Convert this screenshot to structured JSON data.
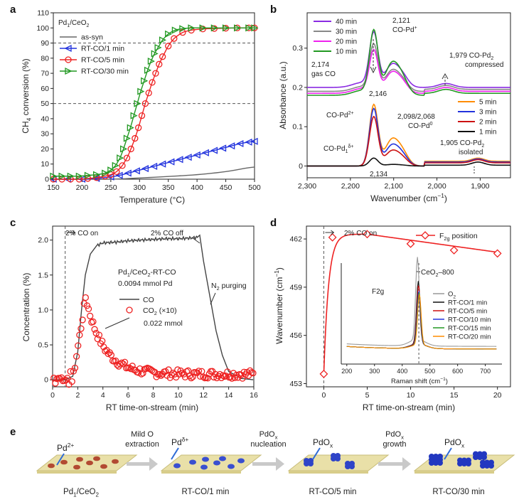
{
  "panel_labels": {
    "a": "a",
    "b": "b",
    "c": "c",
    "d": "d",
    "e": "e"
  },
  "chart_data": [
    {
      "id": "a",
      "type": "line",
      "ylabel_main": "CH",
      "ylabel_sub": "4",
      "ylabel_tail": " conversion (%)",
      "xlabel": "Temperature (°C)",
      "xlim": [
        150,
        500
      ],
      "ylim": [
        0,
        110
      ],
      "xticks": [
        150,
        200,
        250,
        300,
        350,
        400,
        450,
        500
      ],
      "yticks": [
        0,
        10,
        20,
        30,
        40,
        50,
        60,
        70,
        80,
        90,
        100,
        110
      ],
      "hlines": [
        50,
        90
      ],
      "legend_title": {
        "pre": "Pd",
        "sub1": "1",
        "mid": "/CeO",
        "sub2": "2"
      },
      "series": [
        {
          "name": "as-syn",
          "color": "#666666",
          "marker": "none",
          "x": [
            150,
            200,
            250,
            300,
            350,
            400,
            450,
            500
          ],
          "y": [
            0,
            0,
            0,
            0.8,
            1.8,
            3.0,
            5.0,
            8.0
          ]
        },
        {
          "name": "RT-CO/1 min",
          "color": "#2233dd",
          "marker": "tri-left",
          "x": [
            150,
            175,
            200,
            225,
            250,
            265,
            280,
            295,
            310,
            325,
            340,
            355,
            370,
            385,
            400,
            415,
            430,
            445,
            460,
            475,
            490,
            500
          ],
          "y": [
            0,
            0,
            0,
            0.5,
            1.5,
            2.5,
            4,
            5.5,
            7,
            8.5,
            10,
            11.5,
            13,
            14.5,
            16,
            17.5,
            19,
            20.5,
            22,
            23.5,
            24.5,
            25
          ]
        },
        {
          "name": "RT-CO/5 min",
          "color": "#ee2222",
          "marker": "circle",
          "x": [
            150,
            165,
            180,
            195,
            210,
            225,
            240,
            250,
            260,
            270,
            278,
            285,
            292,
            298,
            304,
            310,
            316,
            322,
            328,
            334,
            340,
            350,
            360,
            375,
            390,
            410,
            430,
            450,
            470,
            490,
            500
          ],
          "y": [
            0,
            0,
            0,
            0,
            0.5,
            1,
            2,
            3,
            5,
            9,
            14,
            20,
            27,
            34,
            42,
            50,
            57,
            64,
            70,
            76,
            81,
            88,
            93,
            97,
            98.5,
            99.3,
            99.6,
            99.8,
            100,
            100,
            100
          ]
        },
        {
          "name": "RT-CO/30 min",
          "color": "#229922",
          "marker": "tri-right",
          "x": [
            150,
            165,
            180,
            195,
            210,
            225,
            240,
            250,
            258,
            266,
            272,
            278,
            284,
            290,
            296,
            302,
            308,
            314,
            320,
            326,
            332,
            340,
            350,
            362,
            375,
            390,
            410,
            430,
            450,
            470,
            490,
            500
          ],
          "y": [
            2,
            2,
            2,
            2,
            2.5,
            3,
            4,
            6,
            9,
            14,
            20,
            27,
            34,
            42,
            50,
            58,
            65,
            72,
            78,
            83,
            87,
            92,
            96,
            98.5,
            99.5,
            100,
            100,
            100,
            100,
            100,
            100,
            100
          ]
        }
      ]
    },
    {
      "id": "b",
      "type": "line",
      "ylabel": "Absorbance (a.u.)",
      "xlabel_main": "Wavenumber (cm",
      "xlabel_sup": "−1",
      "xlabel_tail": ")",
      "xlim": [
        2300,
        1830
      ],
      "ylim": [
        -0.03,
        0.39
      ],
      "xticks": [
        2300,
        2200,
        2100,
        2000,
        1900
      ],
      "xticklabels": [
        "2,300",
        "2,200",
        "2,100",
        "2,000",
        "1,900"
      ],
      "yticks": [
        0,
        0.1,
        0.2,
        0.3
      ],
      "yticklabels": [
        "0",
        "0.1",
        "0.2",
        "0.3"
      ],
      "legend_top": [
        "40 min",
        "30 min",
        "20 min",
        "10 min"
      ],
      "legend_bottom": [
        "5 min",
        "3 min",
        "2 min",
        "1 min"
      ],
      "annotations": {
        "a2121": "2,121",
        "copd": "CO-Pd",
        "copd_sup": "+",
        "a1979": "1,979 CO-Pd",
        "a1979_sub": "2",
        "compressed": "compressed",
        "a2174": "2,174",
        "gasco": "gas CO",
        "a2146": "2,146",
        "copd2": "CO-Pd",
        "copd2_sup": "2+",
        "a2098": "2,098/2,068",
        "copd0": "CO-Pd",
        "copd0_sup": "0",
        "copdd": "CO-Pd",
        "copdd_sub": "1",
        "copdd_sup": "δ+",
        "a2134": "2,134",
        "a1905": "1,905 CO-Pd",
        "a1905_sub": "2",
        "isolated": "isolated"
      },
      "series": [
        {
          "name": "40 min",
          "color": "#8a2be2",
          "peak": 0.335,
          "base": 0.2,
          "shoulder": 0.26,
          "low": 0.2
        },
        {
          "name": "30 min",
          "color": "#888888",
          "peak": 0.305,
          "base": 0.19,
          "shoulder": 0.245,
          "low": 0.195
        },
        {
          "name": "20 min",
          "color": "#ee22ee",
          "peak": 0.29,
          "base": 0.185,
          "shoulder": 0.24,
          "low": 0.19
        },
        {
          "name": "10 min",
          "color": "#229922",
          "peak": 0.34,
          "base": 0.18,
          "shoulder": 0.265,
          "low": 0.185
        },
        {
          "name": "5 min",
          "color": "#ff8c00",
          "peak": 0.155,
          "base": 0.0,
          "shoulder": 0.07,
          "low": 0.012
        },
        {
          "name": "3 min",
          "color": "#2233dd",
          "peak": 0.145,
          "base": 0.0,
          "shoulder": 0.055,
          "low": 0.01
        },
        {
          "name": "2 min",
          "color": "#cc1111",
          "peak": 0.125,
          "base": 0.0,
          "shoulder": 0.04,
          "low": 0.008
        },
        {
          "name": "1 min",
          "color": "#111111",
          "peak": 0.02,
          "base": 0.0,
          "shoulder": 0.004,
          "low": 0.002
        }
      ]
    },
    {
      "id": "c",
      "type": "line",
      "ylabel": "Concentration (%)",
      "xlabel": "RT time-on-stream (min)",
      "xlim": [
        0,
        16
      ],
      "ylim": [
        -0.1,
        2.2
      ],
      "xticks": [
        0,
        2,
        4,
        6,
        8,
        10,
        12,
        14,
        16
      ],
      "yticks": [
        0,
        0.5,
        1.0,
        1.5,
        2.0
      ],
      "yticklabels": [
        "0",
        "0.5",
        "1.0",
        "1.5",
        "2.0"
      ],
      "vline": 1,
      "annotations": {
        "co_on": "2% CO on",
        "co_off": "2% CO off",
        "sample_pre": "Pd",
        "sample_sub1": "1",
        "sample_mid": "/CeO",
        "sample_sub2": "2",
        "sample_tail": "-RT-CO",
        "amount": "0.0094 mmol Pd",
        "purge_pre": "N",
        "purge_sub": "2",
        "purge_tail": " purging",
        "mmol": "0.022 mmol"
      },
      "series": [
        {
          "name": "CO",
          "color": "#444444",
          "x": [
            0,
            1,
            1.6,
            2.0,
            2.3,
            2.6,
            3.0,
            3.5,
            4.0,
            5.0,
            6,
            7,
            8,
            9,
            10,
            11,
            11.5,
            11.7,
            12.0,
            12.5,
            13.0,
            13.5,
            14.0,
            15,
            16
          ],
          "y": [
            0,
            0,
            0.05,
            0.4,
            1.0,
            1.5,
            1.8,
            1.92,
            1.96,
            1.97,
            1.99,
            2.0,
            2.01,
            2.02,
            2.02,
            2.03,
            2.04,
            2.07,
            1.7,
            1.2,
            0.7,
            0.35,
            0.12,
            0.02,
            0
          ]
        },
        {
          "name": "CO",
          "name_sub": "2",
          "name_tail": " (×10)",
          "color": "#ee2222",
          "marker": "circle",
          "x": [],
          "y": []
        }
      ]
    },
    {
      "id": "d",
      "type": "line",
      "ylabel_main": "Wavenumber (cm",
      "ylabel_sup": "−1",
      "ylabel_tail": ")",
      "xlabel": "RT time-on-stream (min)",
      "xlim": [
        -2,
        21.5
      ],
      "ylim": [
        452.8,
        462.8
      ],
      "xticks": [
        0,
        5,
        10,
        15,
        20
      ],
      "yticks": [
        453,
        456,
        459,
        462
      ],
      "vline": 0,
      "annotations": {
        "co_on": "2% CO on",
        "ceo2_pre": "CeO",
        "ceo2_sub": "2",
        "ceo2_tail": "–800"
      },
      "legend": {
        "pre": "F",
        "sub": "2g",
        "tail": " position"
      },
      "series": [
        {
          "name": "F2g position",
          "color": "#ee2222",
          "marker": "diamond",
          "x": [
            0,
            1,
            5,
            10,
            15,
            20
          ],
          "y": [
            453.6,
            462.1,
            462.3,
            461.7,
            461.3,
            461.1
          ]
        }
      ],
      "inset": {
        "ylabel": "F2g",
        "xlabel": "Raman shift (cm",
        "xlabel_sup": "−1",
        "xlabel_tail": ")",
        "xlim": [
          180,
          760
        ],
        "xticks": [
          200,
          300,
          400,
          500,
          600,
          700
        ],
        "legend": [
          {
            "label": "O",
            "sub": "2",
            "color": "#999999"
          },
          {
            "label": "RT-CO/1 min",
            "sub": "",
            "color": "#111111"
          },
          {
            "label": "RT-CO/5 min",
            "sub": "",
            "color": "#cc1111"
          },
          {
            "label": "RT-CO/10 min",
            "sub": "",
            "color": "#2233dd"
          },
          {
            "label": "RT-CO/15 min",
            "sub": "",
            "color": "#229922"
          },
          {
            "label": "RT-CO/20 min",
            "sub": "",
            "color": "#ff8c00"
          }
        ]
      }
    }
  ],
  "schematic": {
    "stages": [
      {
        "label_pre": "Pd",
        "label_sub1": "1",
        "label_mid": "/CeO",
        "label_sub2": "2",
        "species": "Pd",
        "species_sup": "2+",
        "species_sub": ""
      },
      {
        "label_pre": "RT-CO/1 min",
        "species": "Pd",
        "species_sup": "δ+",
        "species_sub": ""
      },
      {
        "label_pre": "RT-CO/5 min",
        "species": "PdO",
        "species_sup": "",
        "species_sub": "x"
      },
      {
        "label_pre": "RT-CO/30 min",
        "species": "PdO",
        "species_sup": "",
        "species_sub": "x"
      }
    ],
    "arrows": [
      {
        "line1": "Mild O",
        "line2": "extraction"
      },
      {
        "line1": "PdO",
        "line1_sub": "x",
        "line2": "nucleation"
      },
      {
        "line1": "PdO",
        "line1_sub": "x",
        "line2": "growth"
      }
    ]
  }
}
